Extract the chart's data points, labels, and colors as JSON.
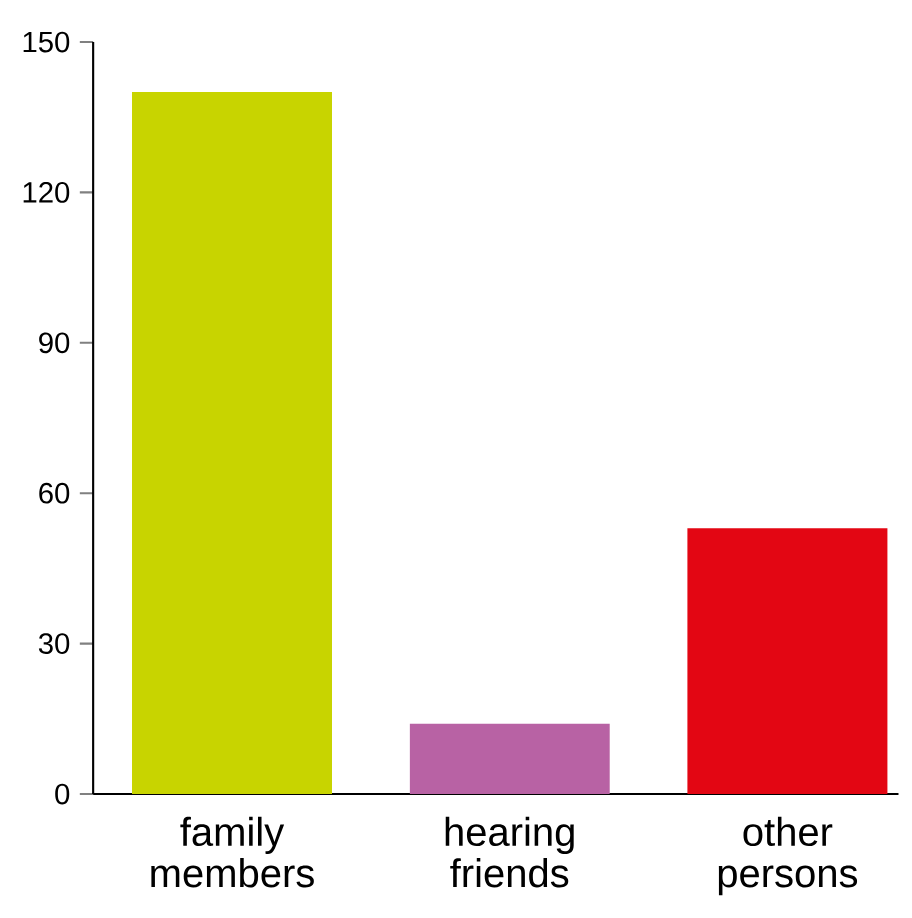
{
  "chart_data": {
    "type": "bar",
    "categories": [
      "family members",
      "hearing friends",
      "other persons"
    ],
    "values": [
      140,
      14,
      53
    ],
    "colors": [
      "#c8d400",
      "#b862a4",
      "#e30613"
    ],
    "ylim": [
      0,
      150
    ],
    "yticks": [
      0,
      30,
      60,
      90,
      120,
      150
    ]
  }
}
